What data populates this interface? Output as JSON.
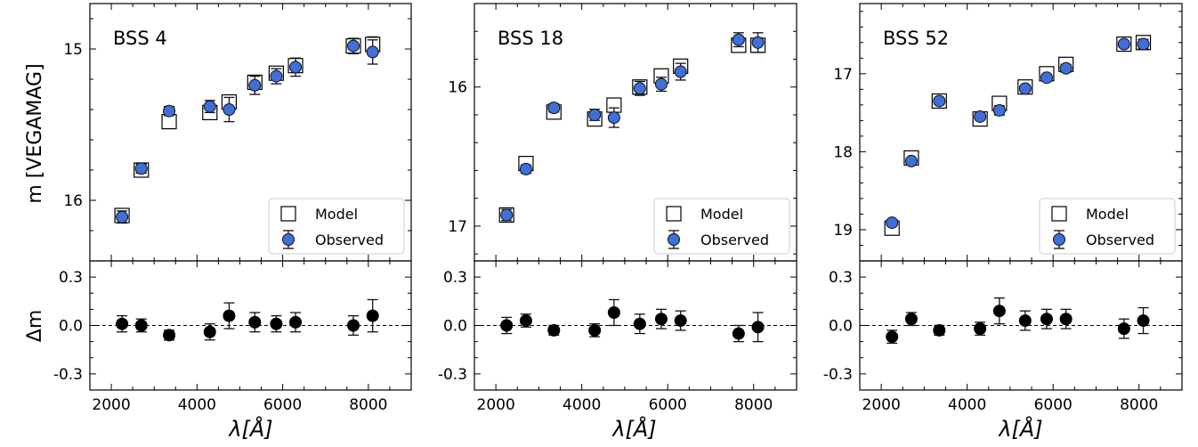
{
  "figure": {
    "ylabel_top": "m [VEGAMAG]",
    "ylabel_bottom": "Δm",
    "xlabel": "λ[Å]"
  },
  "chart_data": [
    {
      "type": "scatter",
      "title": "BSS 4",
      "x": [
        2250,
        2700,
        3350,
        4300,
        4750,
        5350,
        5850,
        6300,
        7650,
        8100
      ],
      "x_ticks": [
        "2000",
        "4000",
        "6000",
        "8000"
      ],
      "xlim": [
        1500,
        9000
      ],
      "ylim": [
        16.4,
        14.7
      ],
      "y_ticks": [
        "15",
        "16"
      ],
      "series": [
        {
          "name": "Model",
          "values": [
            16.1,
            15.8,
            15.48,
            15.42,
            15.35,
            15.22,
            15.16,
            15.11,
            14.98,
            14.97
          ],
          "errors": [
            0.03,
            0.02,
            0.03,
            0.04,
            0.04,
            0.04,
            0.04,
            0.04,
            0.05,
            0.05
          ]
        },
        {
          "name": "Observed",
          "values": [
            16.11,
            15.79,
            15.41,
            15.38,
            15.4,
            15.24,
            15.18,
            15.12,
            14.98,
            15.02
          ],
          "errors": [
            0.04,
            0.03,
            0.03,
            0.04,
            0.08,
            0.06,
            0.05,
            0.06,
            0.05,
            0.08
          ]
        }
      ],
      "residual": {
        "values": [
          0.01,
          0.0,
          -0.06,
          -0.04,
          0.06,
          0.02,
          0.01,
          0.02,
          0.0,
          0.06
        ],
        "errors": [
          0.05,
          0.04,
          0.03,
          0.05,
          0.08,
          0.06,
          0.05,
          0.06,
          0.06,
          0.1
        ],
        "ylim": [
          -0.4,
          0.4
        ],
        "y_ticks": [
          "0.3",
          "0.0",
          "-0.3"
        ]
      },
      "legend": {
        "position": "bottom-right",
        "entries": [
          "Model",
          "Observed"
        ]
      }
    },
    {
      "type": "scatter",
      "title": "BSS 18",
      "x": [
        2250,
        2700,
        3350,
        4300,
        4750,
        5350,
        5850,
        6300,
        7650,
        8100
      ],
      "x_ticks": [
        "2000",
        "4000",
        "6000",
        "8000"
      ],
      "xlim": [
        1500,
        9000
      ],
      "ylim": [
        17.25,
        15.4
      ],
      "y_ticks": [
        "16",
        "17"
      ],
      "series": [
        {
          "name": "Model",
          "values": [
            16.92,
            16.55,
            16.18,
            16.23,
            16.13,
            16.0,
            15.92,
            15.85,
            15.7,
            15.7
          ],
          "errors": [
            0.03,
            0.03,
            0.03,
            0.04,
            0.05,
            0.04,
            0.04,
            0.04,
            0.05,
            0.05
          ]
        },
        {
          "name": "Observed",
          "values": [
            16.92,
            16.59,
            16.15,
            16.2,
            16.22,
            16.01,
            15.98,
            15.89,
            15.66,
            15.68
          ],
          "errors": [
            0.04,
            0.03,
            0.03,
            0.04,
            0.07,
            0.05,
            0.05,
            0.06,
            0.05,
            0.07
          ]
        }
      ],
      "residual": {
        "values": [
          0.0,
          0.03,
          -0.03,
          -0.03,
          0.08,
          0.01,
          0.04,
          0.03,
          -0.05,
          -0.01
        ],
        "errors": [
          0.05,
          0.04,
          0.03,
          0.04,
          0.08,
          0.06,
          0.06,
          0.06,
          0.05,
          0.09
        ],
        "ylim": [
          -0.4,
          0.4
        ],
        "y_ticks": [
          "0.3",
          "0.0",
          "-0.3"
        ]
      },
      "legend": {
        "position": "bottom-right",
        "entries": [
          "Model",
          "Observed"
        ]
      }
    },
    {
      "type": "scatter",
      "title": "BSS 52",
      "x": [
        2250,
        2700,
        3350,
        4300,
        4750,
        5350,
        5850,
        6300,
        7650,
        8100
      ],
      "x_ticks": [
        "2000",
        "4000",
        "6000",
        "8000"
      ],
      "xlim": [
        1500,
        9000
      ],
      "ylim": [
        19.4,
        16.1
      ],
      "y_ticks": [
        "17",
        "18",
        "19"
      ],
      "series": [
        {
          "name": "Model",
          "values": [
            18.98,
            18.08,
            17.35,
            17.58,
            17.38,
            17.17,
            17.0,
            16.88,
            16.62,
            16.6
          ],
          "errors": [
            0.03,
            0.03,
            0.03,
            0.04,
            0.05,
            0.04,
            0.04,
            0.04,
            0.05,
            0.05
          ]
        },
        {
          "name": "Observed",
          "values": [
            18.91,
            18.12,
            17.35,
            17.55,
            17.47,
            17.19,
            17.05,
            16.93,
            16.62,
            16.62
          ],
          "errors": [
            0.04,
            0.03,
            0.04,
            0.04,
            0.06,
            0.04,
            0.04,
            0.05,
            0.04,
            0.06
          ]
        }
      ],
      "residual": {
        "values": [
          -0.07,
          0.04,
          -0.03,
          -0.02,
          0.09,
          0.03,
          0.04,
          0.04,
          -0.02,
          0.03
        ],
        "errors": [
          0.04,
          0.04,
          0.03,
          0.04,
          0.08,
          0.06,
          0.06,
          0.06,
          0.06,
          0.08
        ],
        "ylim": [
          -0.4,
          0.4
        ],
        "y_ticks": [
          "0.3",
          "0.0",
          "-0.3"
        ]
      },
      "legend": {
        "position": "bottom-right",
        "entries": [
          "Model",
          "Observed"
        ]
      }
    }
  ]
}
